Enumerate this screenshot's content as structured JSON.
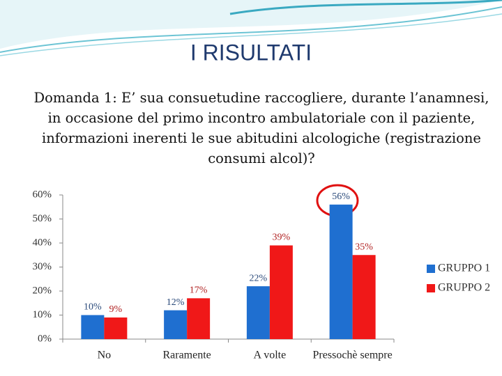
{
  "chart_data": {
    "type": "bar",
    "title": "I RISULTATI",
    "subtitle": "Domanda 1: E’ sua consuetudine raccogliere, durante l’anamnesi, in occasione del primo incontro ambulatoriale con il paziente, informazioni inerenti le sue abitudini alcologiche  (registrazione consumi alcol)?",
    "categories": [
      "No",
      "Raramente",
      "A volte",
      "Pressochè sempre"
    ],
    "series": [
      {
        "name": "GRUPPO 1",
        "color": "#1f6fd0",
        "values": [
          10,
          12,
          22,
          56
        ],
        "value_labels": [
          "10%",
          "12%",
          "22%",
          "56%"
        ]
      },
      {
        "name": "GRUPPO 2",
        "color": "#f01818",
        "values": [
          9,
          17,
          39,
          35
        ],
        "value_labels": [
          "9%",
          "17%",
          "39%",
          "35%"
        ]
      }
    ],
    "ylim": [
      0,
      60
    ],
    "yticks": [
      {
        "value": 0,
        "label": "0%"
      },
      {
        "value": 10,
        "label": "10%"
      },
      {
        "value": 20,
        "label": "20%"
      },
      {
        "value": 30,
        "label": "30%"
      },
      {
        "value": 40,
        "label": "40%"
      },
      {
        "value": 50,
        "label": "50%"
      },
      {
        "value": 60,
        "label": "60%"
      }
    ],
    "grid": false,
    "legend": "right"
  }
}
